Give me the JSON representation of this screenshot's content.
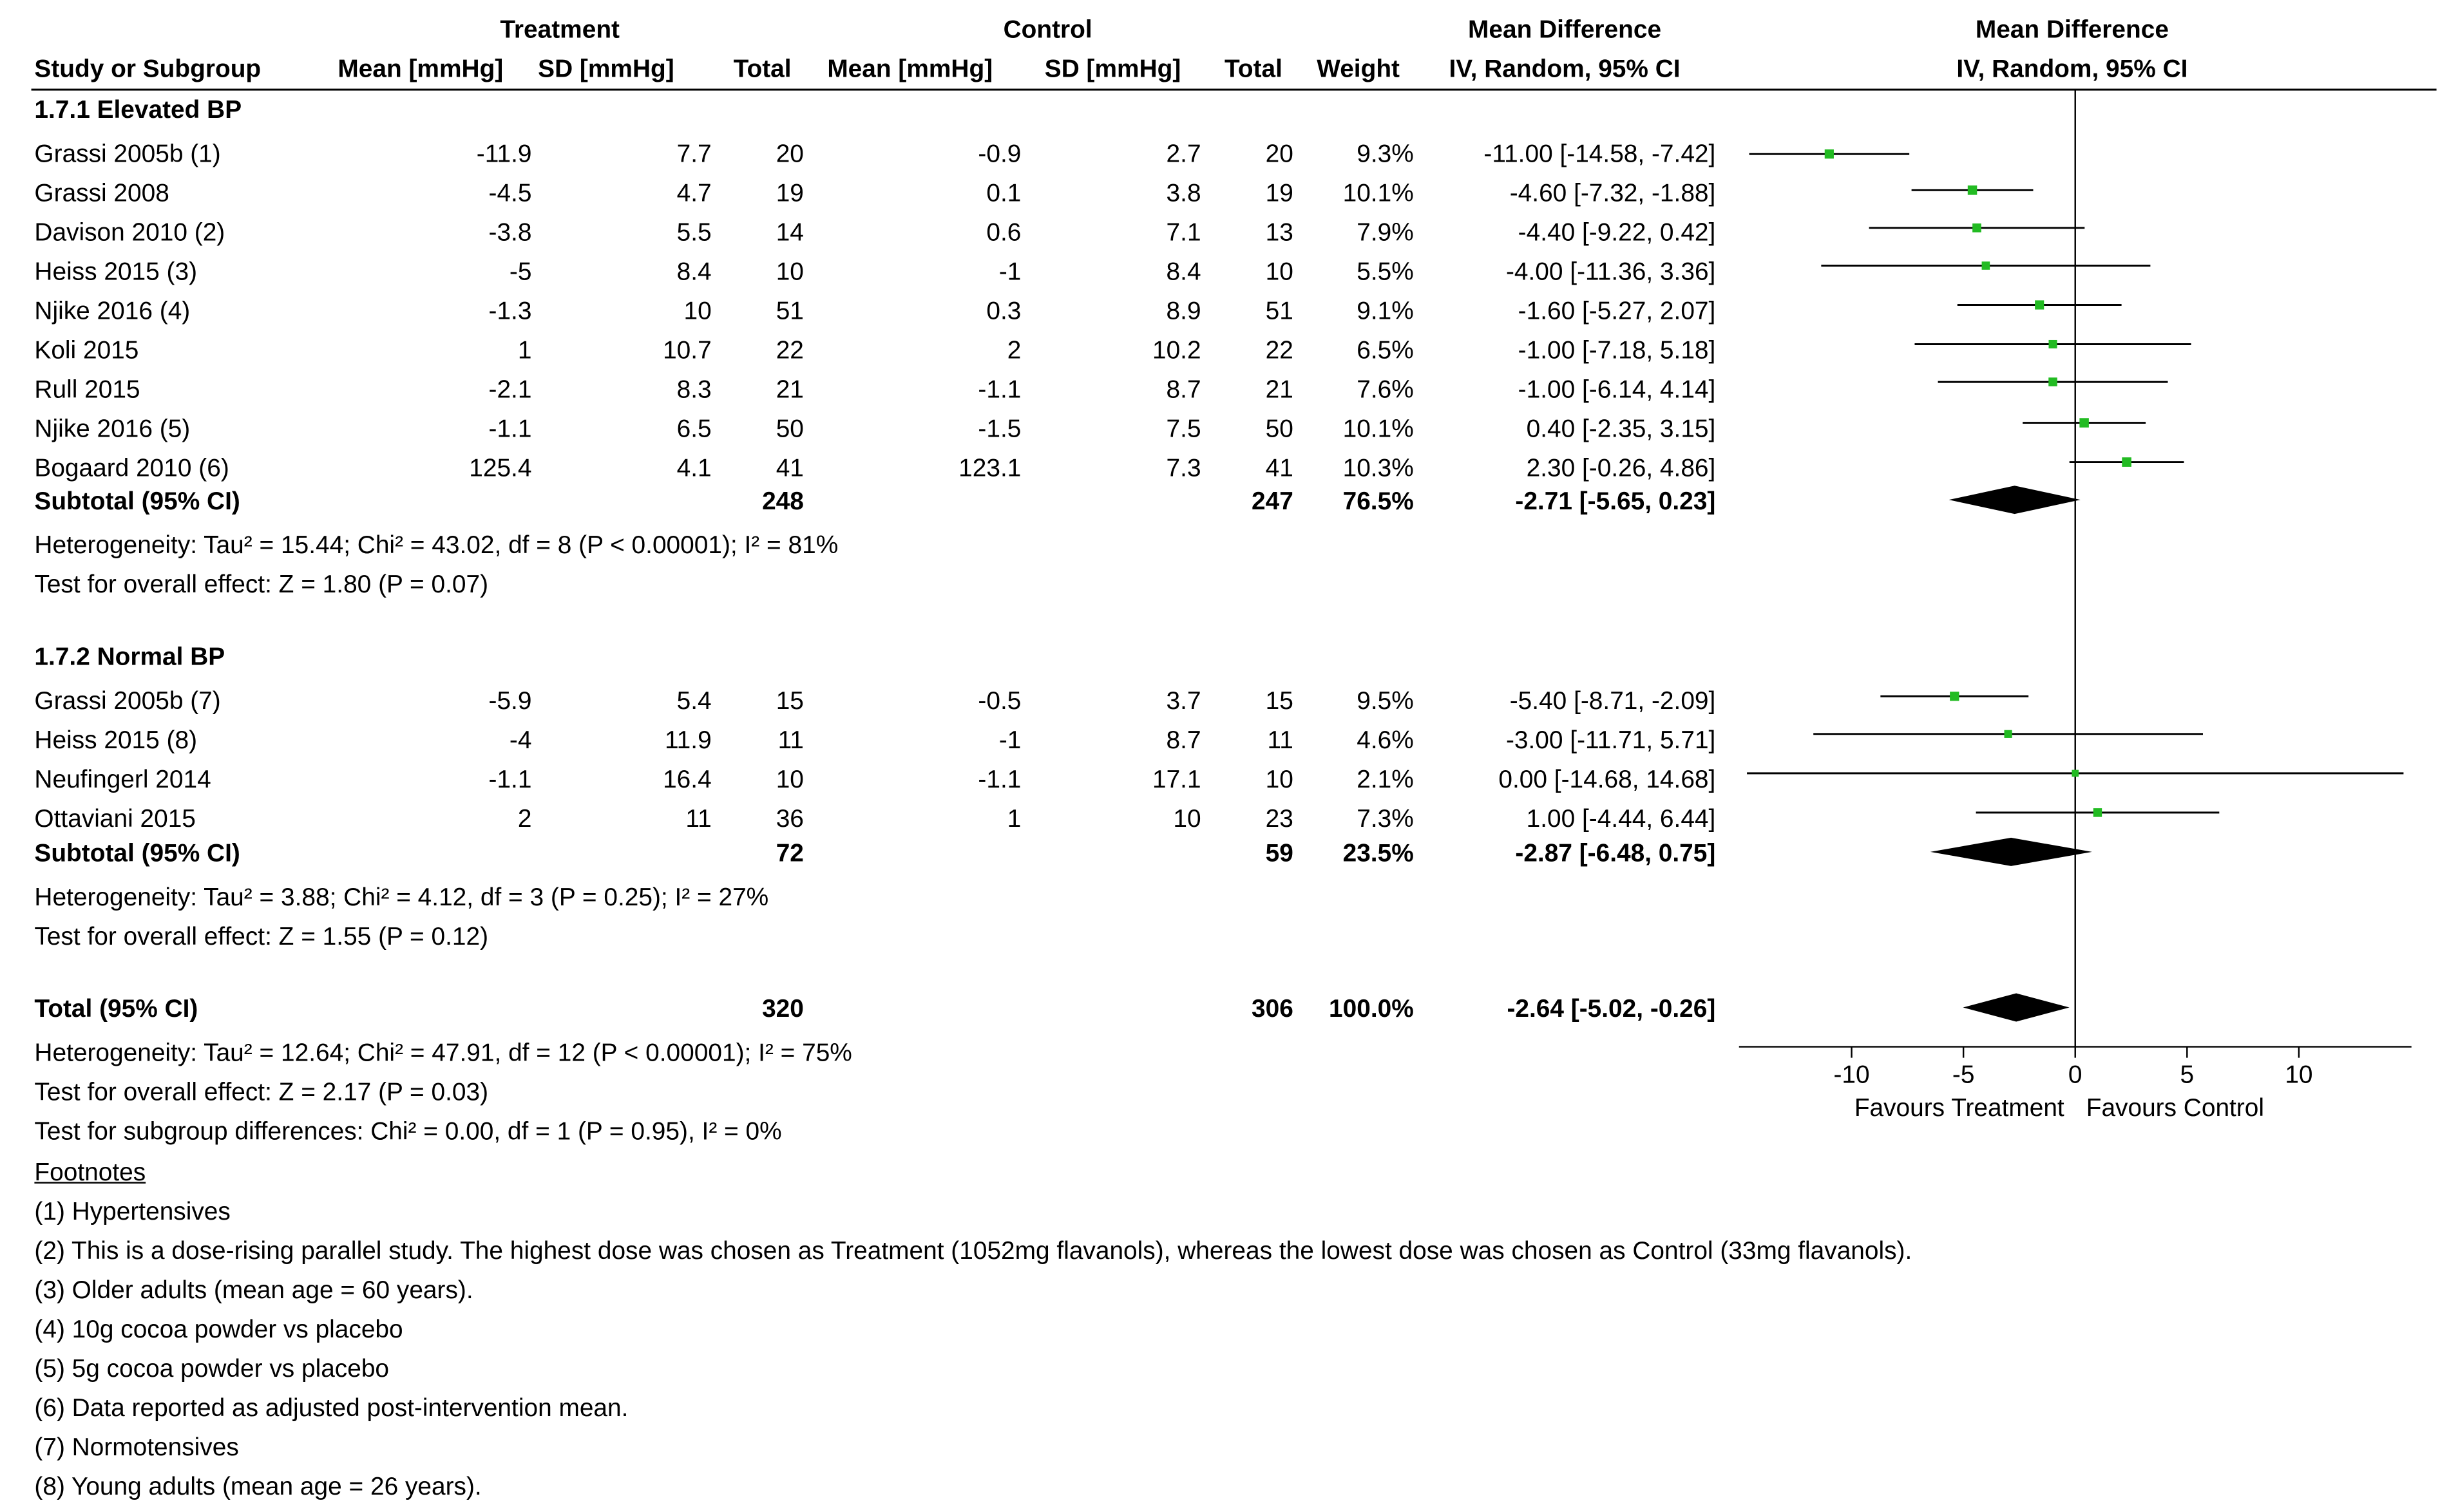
{
  "headers": {
    "treatment_group": "Treatment",
    "control_group": "Control",
    "md_group_left": "Mean Difference",
    "md_group_right": "Mean Difference",
    "study": "Study or Subgroup",
    "t_mean": "Mean [mmHg]",
    "t_sd": "SD [mmHg]",
    "t_total": "Total",
    "c_mean": "Mean [mmHg]",
    "c_sd": "SD [mmHg]",
    "c_total": "Total",
    "weight": "Weight",
    "ci_left": "IV, Random, 95% CI",
    "ci_right": "IV, Random, 95% CI"
  },
  "subgroups": [
    {
      "title": "1.7.1 Elevated BP",
      "studies": [
        {
          "name": "Grassi 2005b (1)",
          "t_mean": "-11.9",
          "t_sd": "7.7",
          "t_total": "20",
          "c_mean": "-0.9",
          "c_sd": "2.7",
          "c_total": "20",
          "weight": "9.3%",
          "ci": "-11.00 [-14.58, -7.42]"
        },
        {
          "name": "Grassi 2008",
          "t_mean": "-4.5",
          "t_sd": "4.7",
          "t_total": "19",
          "c_mean": "0.1",
          "c_sd": "3.8",
          "c_total": "19",
          "weight": "10.1%",
          "ci": "-4.60 [-7.32, -1.88]"
        },
        {
          "name": "Davison 2010 (2)",
          "t_mean": "-3.8",
          "t_sd": "5.5",
          "t_total": "14",
          "c_mean": "0.6",
          "c_sd": "7.1",
          "c_total": "13",
          "weight": "7.9%",
          "ci": "-4.40 [-9.22, 0.42]"
        },
        {
          "name": "Heiss 2015 (3)",
          "t_mean": "-5",
          "t_sd": "8.4",
          "t_total": "10",
          "c_mean": "-1",
          "c_sd": "8.4",
          "c_total": "10",
          "weight": "5.5%",
          "ci": "-4.00 [-11.36, 3.36]"
        },
        {
          "name": "Njike 2016 (4)",
          "t_mean": "-1.3",
          "t_sd": "10",
          "t_total": "51",
          "c_mean": "0.3",
          "c_sd": "8.9",
          "c_total": "51",
          "weight": "9.1%",
          "ci": "-1.60 [-5.27, 2.07]"
        },
        {
          "name": "Koli 2015",
          "t_mean": "1",
          "t_sd": "10.7",
          "t_total": "22",
          "c_mean": "2",
          "c_sd": "10.2",
          "c_total": "22",
          "weight": "6.5%",
          "ci": "-1.00 [-7.18, 5.18]"
        },
        {
          "name": "Rull 2015",
          "t_mean": "-2.1",
          "t_sd": "8.3",
          "t_total": "21",
          "c_mean": "-1.1",
          "c_sd": "8.7",
          "c_total": "21",
          "weight": "7.6%",
          "ci": "-1.00 [-6.14, 4.14]"
        },
        {
          "name": "Njike 2016 (5)",
          "t_mean": "-1.1",
          "t_sd": "6.5",
          "t_total": "50",
          "c_mean": "-1.5",
          "c_sd": "7.5",
          "c_total": "50",
          "weight": "10.1%",
          "ci": "0.40 [-2.35, 3.15]"
        },
        {
          "name": "Bogaard 2010 (6)",
          "t_mean": "125.4",
          "t_sd": "4.1",
          "t_total": "41",
          "c_mean": "123.1",
          "c_sd": "7.3",
          "c_total": "41",
          "weight": "10.3%",
          "ci": "2.30 [-0.26, 4.86]"
        }
      ],
      "subtotal": {
        "label": "Subtotal (95% CI)",
        "t_total": "248",
        "c_total": "247",
        "weight": "76.5%",
        "ci": "-2.71 [-5.65, 0.23]"
      },
      "heterogeneity": "Heterogeneity: Tau² = 15.44; Chi² = 43.02, df = 8 (P < 0.00001); I² = 81%",
      "overall_effect": "Test for overall effect: Z = 1.80 (P = 0.07)"
    },
    {
      "title": "1.7.2 Normal BP",
      "studies": [
        {
          "name": "Grassi 2005b (7)",
          "t_mean": "-5.9",
          "t_sd": "5.4",
          "t_total": "15",
          "c_mean": "-0.5",
          "c_sd": "3.7",
          "c_total": "15",
          "weight": "9.5%",
          "ci": "-5.40 [-8.71, -2.09]"
        },
        {
          "name": "Heiss 2015 (8)",
          "t_mean": "-4",
          "t_sd": "11.9",
          "t_total": "11",
          "c_mean": "-1",
          "c_sd": "8.7",
          "c_total": "11",
          "weight": "4.6%",
          "ci": "-3.00 [-11.71, 5.71]"
        },
        {
          "name": "Neufingerl 2014",
          "t_mean": "-1.1",
          "t_sd": "16.4",
          "t_total": "10",
          "c_mean": "-1.1",
          "c_sd": "17.1",
          "c_total": "10",
          "weight": "2.1%",
          "ci": "0.00 [-14.68, 14.68]"
        },
        {
          "name": "Ottaviani 2015",
          "t_mean": "2",
          "t_sd": "11",
          "t_total": "36",
          "c_mean": "1",
          "c_sd": "10",
          "c_total": "23",
          "weight": "7.3%",
          "ci": "1.00 [-4.44, 6.44]"
        }
      ],
      "subtotal": {
        "label": "Subtotal (95% CI)",
        "t_total": "72",
        "c_total": "59",
        "weight": "23.5%",
        "ci": "-2.87 [-6.48, 0.75]"
      },
      "heterogeneity": "Heterogeneity: Tau² = 3.88; Chi² = 4.12, df = 3 (P = 0.25); I² = 27%",
      "overall_effect": "Test for overall effect: Z = 1.55 (P = 0.12)"
    }
  ],
  "total": {
    "label": "Total (95% CI)",
    "t_total": "320",
    "c_total": "306",
    "weight": "100.0%",
    "ci": "-2.64 [-5.02, -0.26]",
    "heterogeneity": "Heterogeneity: Tau² = 12.64; Chi² = 47.91, df = 12 (P < 0.00001); I² = 75%",
    "overall_effect": "Test for overall effect: Z = 2.17 (P = 0.03)",
    "subgroup_diff": "Test for subgroup differences: Chi² = 0.00, df = 1 (P = 0.95), I² = 0%"
  },
  "footnotes": {
    "title": "Footnotes",
    "items": [
      "(1) Hypertensives",
      "(2) This is a dose-rising parallel study. The highest dose was chosen as Treatment (1052mg flavanols), whereas the lowest dose was chosen as Control (33mg flavanols).",
      "(3) Older adults (mean age = 60 years).",
      "(4) 10g cocoa powder vs placebo",
      "(5) 5g cocoa powder vs placebo",
      "(6) Data reported as adjusted post-intervention mean.",
      "(7) Normotensives",
      "(8) Young adults (mean age = 26 years)."
    ]
  },
  "chart_data": {
    "type": "forest",
    "title": "Mean Difference",
    "subtitle": "IV, Random, 95% CI",
    "xlim": [
      -15,
      15
    ],
    "ticks": [
      -10,
      -5,
      0,
      5,
      10
    ],
    "tick_labels": [
      "-10",
      "-5",
      "0",
      "5",
      "10"
    ],
    "xlabel_left": "Favours Treatment",
    "xlabel_right": "Favours Control",
    "colors": {
      "marker": "#22bb22",
      "diamond": "#000000",
      "line": "#000000"
    },
    "studies": [
      {
        "name": "Grassi 2005b (1)",
        "md": -11.0,
        "lo": -14.58,
        "hi": -7.42,
        "weight": 9.3
      },
      {
        "name": "Grassi 2008",
        "md": -4.6,
        "lo": -7.32,
        "hi": -1.88,
        "weight": 10.1
      },
      {
        "name": "Davison 2010 (2)",
        "md": -4.4,
        "lo": -9.22,
        "hi": 0.42,
        "weight": 7.9
      },
      {
        "name": "Heiss 2015 (3)",
        "md": -4.0,
        "lo": -11.36,
        "hi": 3.36,
        "weight": 5.5
      },
      {
        "name": "Njike 2016 (4)",
        "md": -1.6,
        "lo": -5.27,
        "hi": 2.07,
        "weight": 9.1
      },
      {
        "name": "Koli 2015",
        "md": -1.0,
        "lo": -7.18,
        "hi": 5.18,
        "weight": 6.5
      },
      {
        "name": "Rull 2015",
        "md": -1.0,
        "lo": -6.14,
        "hi": 4.14,
        "weight": 7.6
      },
      {
        "name": "Njike 2016 (5)",
        "md": 0.4,
        "lo": -2.35,
        "hi": 3.15,
        "weight": 10.1
      },
      {
        "name": "Bogaard 2010 (6)",
        "md": 2.3,
        "lo": -0.26,
        "hi": 4.86,
        "weight": 10.3
      },
      {
        "name": "Grassi 2005b (7)",
        "md": -5.4,
        "lo": -8.71,
        "hi": -2.09,
        "weight": 9.5
      },
      {
        "name": "Heiss 2015 (8)",
        "md": -3.0,
        "lo": -11.71,
        "hi": 5.71,
        "weight": 4.6
      },
      {
        "name": "Neufingerl 2014",
        "md": 0.0,
        "lo": -14.68,
        "hi": 14.68,
        "weight": 2.1
      },
      {
        "name": "Ottaviani 2015",
        "md": 1.0,
        "lo": -4.44,
        "hi": 6.44,
        "weight": 7.3
      }
    ],
    "summaries": [
      {
        "name": "Subtotal 1.7.1",
        "md": -2.71,
        "lo": -5.65,
        "hi": 0.23
      },
      {
        "name": "Subtotal 1.7.2",
        "md": -2.87,
        "lo": -6.48,
        "hi": 0.75
      },
      {
        "name": "Total",
        "md": -2.64,
        "lo": -5.02,
        "hi": -0.26
      }
    ]
  }
}
